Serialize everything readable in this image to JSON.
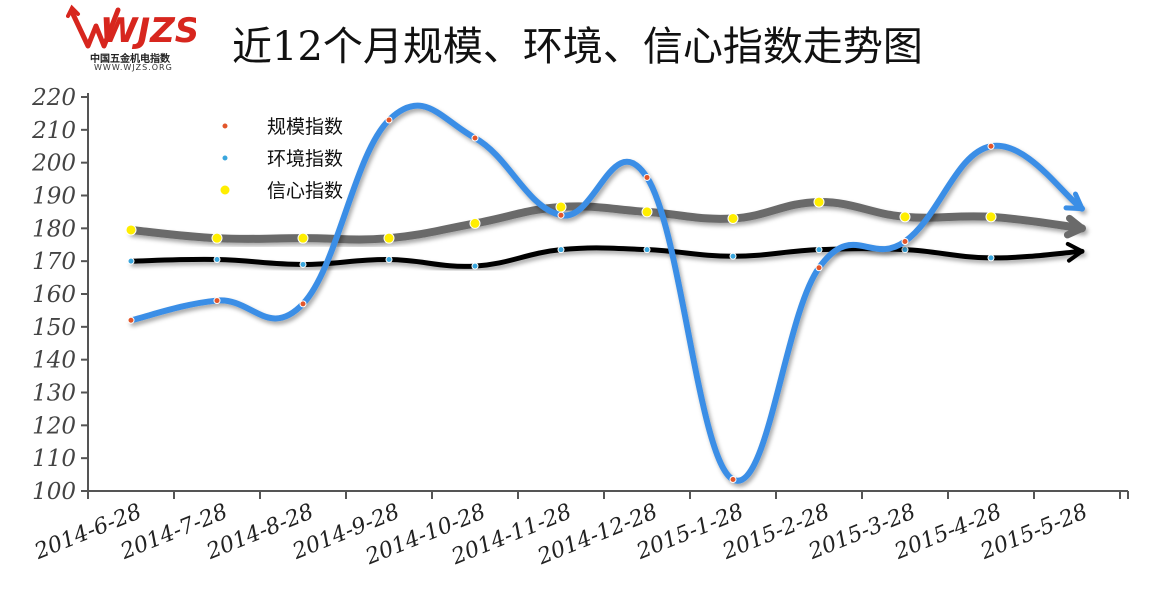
{
  "header": {
    "title": "近12个月规模、环境、信心指数走势图",
    "logo": {
      "mark_text": "WJZS",
      "org_name": "中国五金机电指数",
      "url_text": "WWW.WJZS.ORG",
      "mark_color": "#d7261e"
    }
  },
  "chart_data": {
    "type": "line",
    "title": "近12个月规模、环境、信心指数走势图",
    "xlabel": "",
    "ylabel": "",
    "categories": [
      "2014-6-28",
      "2014-7-28",
      "2014-8-28",
      "2014-9-28",
      "2014-10-28",
      "2014-11-28",
      "2014-12-28",
      "2015-1-28",
      "2015-2-28",
      "2015-3-28",
      "2015-4-28",
      "2015-5-28"
    ],
    "yticks": [
      100,
      110,
      120,
      130,
      140,
      150,
      160,
      170,
      180,
      190,
      200,
      210,
      220
    ],
    "ylim": [
      100,
      220
    ],
    "legend_position": "top-left",
    "grid": false,
    "series": [
      {
        "name": "规模指数",
        "color": "#3a8ee6",
        "marker_color": "#e2562b",
        "values": [
          152,
          158,
          157,
          213,
          207.5,
          184,
          195.5,
          103.5,
          168,
          176,
          205,
          186
        ]
      },
      {
        "name": "环境指数",
        "color": "#000000",
        "marker_color": "#3aa6dd",
        "values": [
          170,
          170.5,
          169,
          170.5,
          168.5,
          173.5,
          173.5,
          171.5,
          173.5,
          173.5,
          171,
          173
        ]
      },
      {
        "name": "信心指数",
        "color": "#6a6a6a",
        "marker_color": "#ffee00",
        "values": [
          179.5,
          177,
          177,
          177,
          181.5,
          186.5,
          185,
          183,
          188,
          183.5,
          183.5,
          180
        ]
      }
    ]
  }
}
